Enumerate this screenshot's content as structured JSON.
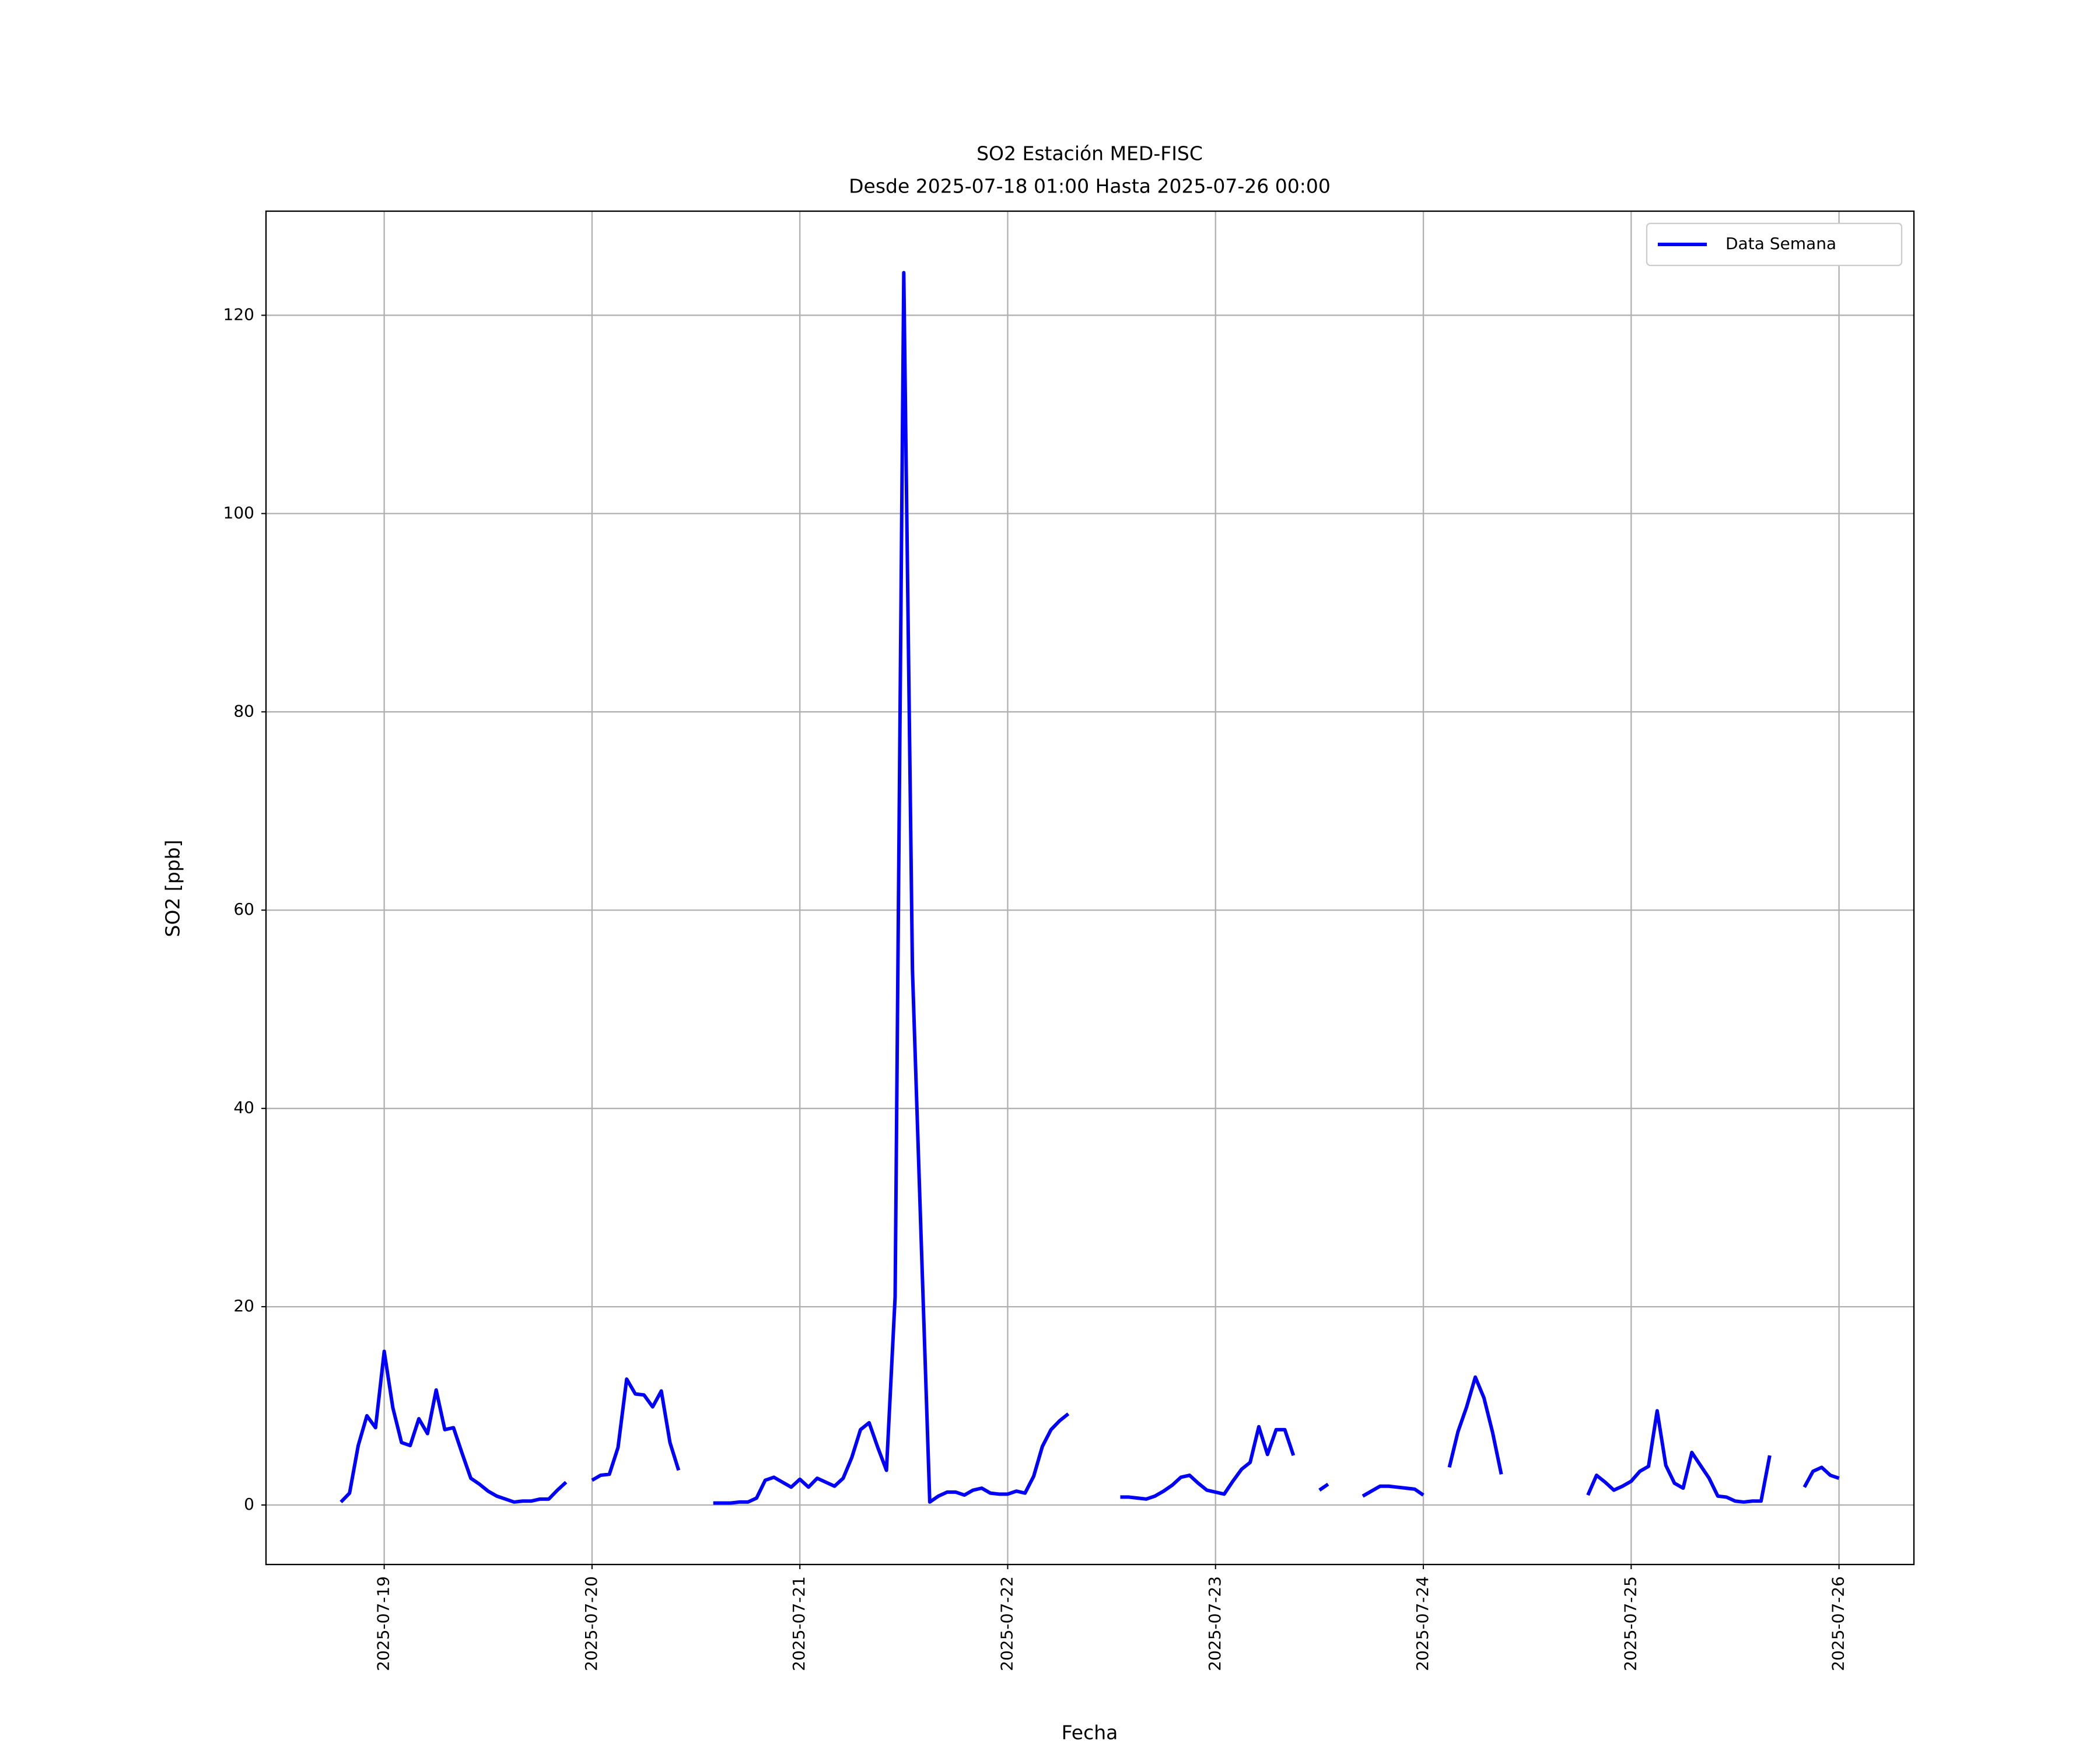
{
  "chart_data": {
    "type": "line",
    "title": "SO2 Estación MED-FISC",
    "subtitle": "Desde 2025-07-18 01:00 Hasta 2025-07-26 00:00",
    "xlabel": "Fecha",
    "ylabel": "SO2 [ppb]",
    "x": [
      "2025-07-18 19:00",
      "2025-07-18 20:00",
      "2025-07-18 21:00",
      "2025-07-18 22:00",
      "2025-07-18 23:00",
      "2025-07-19 00:00",
      "2025-07-19 01:00",
      "2025-07-19 02:00",
      "2025-07-19 03:00",
      "2025-07-19 04:00",
      "2025-07-19 05:00",
      "2025-07-19 06:00",
      "2025-07-19 07:00",
      "2025-07-19 08:00",
      "2025-07-19 09:00",
      "2025-07-19 10:00",
      "2025-07-19 11:00",
      "2025-07-19 12:00",
      "2025-07-19 13:00",
      "2025-07-19 14:00",
      "2025-07-19 15:00",
      "2025-07-19 16:00",
      "2025-07-19 17:00",
      "2025-07-19 18:00",
      "2025-07-19 19:00",
      "2025-07-19 20:00",
      "2025-07-19 21:00",
      "2025-07-19 22:00",
      "2025-07-19 23:00",
      "2025-07-20 00:00",
      "2025-07-20 01:00",
      "2025-07-20 02:00",
      "2025-07-20 03:00",
      "2025-07-20 04:00",
      "2025-07-20 05:00",
      "2025-07-20 06:00",
      "2025-07-20 07:00",
      "2025-07-20 08:00",
      "2025-07-20 09:00",
      "2025-07-20 10:00",
      "2025-07-20 11:00",
      "2025-07-20 12:00",
      "2025-07-20 13:00",
      "2025-07-20 14:00",
      "2025-07-20 15:00",
      "2025-07-20 16:00",
      "2025-07-20 17:00",
      "2025-07-20 18:00",
      "2025-07-20 19:00",
      "2025-07-20 20:00",
      "2025-07-20 21:00",
      "2025-07-20 22:00",
      "2025-07-20 23:00",
      "2025-07-21 00:00",
      "2025-07-21 01:00",
      "2025-07-21 02:00",
      "2025-07-21 03:00",
      "2025-07-21 04:00",
      "2025-07-21 05:00",
      "2025-07-21 06:00",
      "2025-07-21 07:00",
      "2025-07-21 08:00",
      "2025-07-21 09:00",
      "2025-07-21 10:00",
      "2025-07-21 11:00",
      "2025-07-21 12:00",
      "2025-07-21 13:00",
      "2025-07-21 14:00",
      "2025-07-21 15:00",
      "2025-07-21 16:00",
      "2025-07-21 17:00",
      "2025-07-21 18:00",
      "2025-07-21 19:00",
      "2025-07-21 20:00",
      "2025-07-21 21:00",
      "2025-07-21 22:00",
      "2025-07-21 23:00",
      "2025-07-22 00:00",
      "2025-07-22 01:00",
      "2025-07-22 02:00",
      "2025-07-22 03:00",
      "2025-07-22 04:00",
      "2025-07-22 05:00",
      "2025-07-22 06:00",
      "2025-07-22 07:00",
      "2025-07-22 08:00",
      "2025-07-22 09:00",
      "2025-07-22 10:00",
      "2025-07-22 11:00",
      "2025-07-22 12:00",
      "2025-07-22 13:00",
      "2025-07-22 14:00",
      "2025-07-22 15:00",
      "2025-07-22 16:00",
      "2025-07-22 17:00",
      "2025-07-22 18:00",
      "2025-07-22 19:00",
      "2025-07-22 20:00",
      "2025-07-22 21:00",
      "2025-07-22 22:00",
      "2025-07-22 23:00",
      "2025-07-23 00:00",
      "2025-07-23 01:00",
      "2025-07-23 02:00",
      "2025-07-23 03:00",
      "2025-07-23 04:00",
      "2025-07-23 05:00",
      "2025-07-23 06:00",
      "2025-07-23 07:00",
      "2025-07-23 08:00",
      "2025-07-23 09:00",
      "2025-07-23 10:00",
      "2025-07-23 11:00",
      "2025-07-23 12:00",
      "2025-07-23 13:00",
      "2025-07-23 14:00",
      "2025-07-23 15:00",
      "2025-07-23 16:00",
      "2025-07-23 17:00",
      "2025-07-23 18:00",
      "2025-07-23 19:00",
      "2025-07-23 20:00",
      "2025-07-23 21:00",
      "2025-07-23 22:00",
      "2025-07-23 23:00",
      "2025-07-24 00:00",
      "2025-07-24 01:00",
      "2025-07-24 02:00",
      "2025-07-24 03:00",
      "2025-07-24 04:00",
      "2025-07-24 05:00",
      "2025-07-24 06:00",
      "2025-07-24 07:00",
      "2025-07-24 08:00",
      "2025-07-24 09:00",
      "2025-07-24 10:00",
      "2025-07-24 11:00",
      "2025-07-24 12:00",
      "2025-07-24 13:00",
      "2025-07-24 14:00",
      "2025-07-24 15:00",
      "2025-07-24 16:00",
      "2025-07-24 17:00",
      "2025-07-24 18:00",
      "2025-07-24 19:00",
      "2025-07-24 20:00",
      "2025-07-24 21:00",
      "2025-07-24 22:00",
      "2025-07-24 23:00",
      "2025-07-25 00:00",
      "2025-07-25 01:00",
      "2025-07-25 02:00",
      "2025-07-25 03:00",
      "2025-07-25 04:00",
      "2025-07-25 05:00",
      "2025-07-25 06:00",
      "2025-07-25 07:00",
      "2025-07-25 08:00",
      "2025-07-25 09:00",
      "2025-07-25 10:00",
      "2025-07-25 11:00",
      "2025-07-25 12:00",
      "2025-07-25 13:00",
      "2025-07-25 14:00",
      "2025-07-25 15:00",
      "2025-07-25 16:00",
      "2025-07-25 17:00",
      "2025-07-25 18:00",
      "2025-07-25 19:00",
      "2025-07-25 20:00",
      "2025-07-25 21:00",
      "2025-07-25 22:00",
      "2025-07-25 23:00",
      "2025-07-26 00:00"
    ],
    "series": [
      {
        "name": "Data Semana",
        "color": "#0000ff",
        "values": [
          0.3,
          1.2,
          6,
          9,
          7.8,
          15.5,
          9.8,
          6.3,
          6,
          8.7,
          7.2,
          11.6,
          7.6,
          7.8,
          5.2,
          2.7,
          2.1,
          1.4,
          0.9,
          0.6,
          0.3,
          0.4,
          0.4,
          0.6,
          0.6,
          1.5,
          2.3,
          null,
          null,
          2.5,
          3,
          3.1,
          5.8,
          12.7,
          11.2,
          11.1,
          9.9,
          11.5,
          6.3,
          3.5,
          null,
          null,
          null,
          0.2,
          0.2,
          0.2,
          0.3,
          0.3,
          0.7,
          2.5,
          2.8,
          2.3,
          1.8,
          2.6,
          1.8,
          2.7,
          2.3,
          1.9,
          2.7,
          4.8,
          7.6,
          8.3,
          5.8,
          3.5,
          21,
          124.3,
          54,
          27,
          0.3,
          0.9,
          1.3,
          1.3,
          1.0,
          1.5,
          1.7,
          1.2,
          1.1,
          1.1,
          1.4,
          1.2,
          2.9,
          5.9,
          7.6,
          8.5,
          9.2,
          null,
          null,
          null,
          null,
          null,
          0.8,
          0.8,
          0.7,
          0.6,
          0.9,
          1.4,
          2.0,
          2.8,
          3.0,
          2.2,
          1.5,
          1.3,
          1.1,
          2.4,
          3.6,
          4.3,
          7.9,
          5.1,
          7.6,
          7.6,
          5.0,
          null,
          null,
          1.5,
          2.1,
          null,
          null,
          null,
          0.9,
          1.4,
          1.9,
          1.9,
          1.8,
          1.7,
          1.6,
          1.0,
          null,
          null,
          3.8,
          7.4,
          9.9,
          12.9,
          10.8,
          7.3,
          3.1,
          null,
          null,
          null,
          null,
          null,
          null,
          null,
          null,
          null,
          1.0,
          3.0,
          2.3,
          1.5,
          1.9,
          2.4,
          3.4,
          3.9,
          9.5,
          4.0,
          2.2,
          1.7,
          5.3,
          4.0,
          2.7,
          0.9,
          0.8,
          0.4,
          0.3,
          0.4,
          0.4,
          5.0,
          null,
          null,
          null,
          1.8,
          3.4,
          3.8,
          3.0,
          2.7
        ]
      }
    ],
    "xlim": [
      "2025-07-18 10:21",
      "2025-07-26 08:39"
    ],
    "xticks": [
      "2025-07-19",
      "2025-07-20",
      "2025-07-21",
      "2025-07-22",
      "2025-07-23",
      "2025-07-24",
      "2025-07-25",
      "2025-07-26"
    ],
    "ylim": [
      -6.0,
      130.5
    ],
    "yticks": [
      0,
      20,
      40,
      60,
      80,
      100,
      120
    ],
    "grid": true,
    "legend": "upper right"
  }
}
